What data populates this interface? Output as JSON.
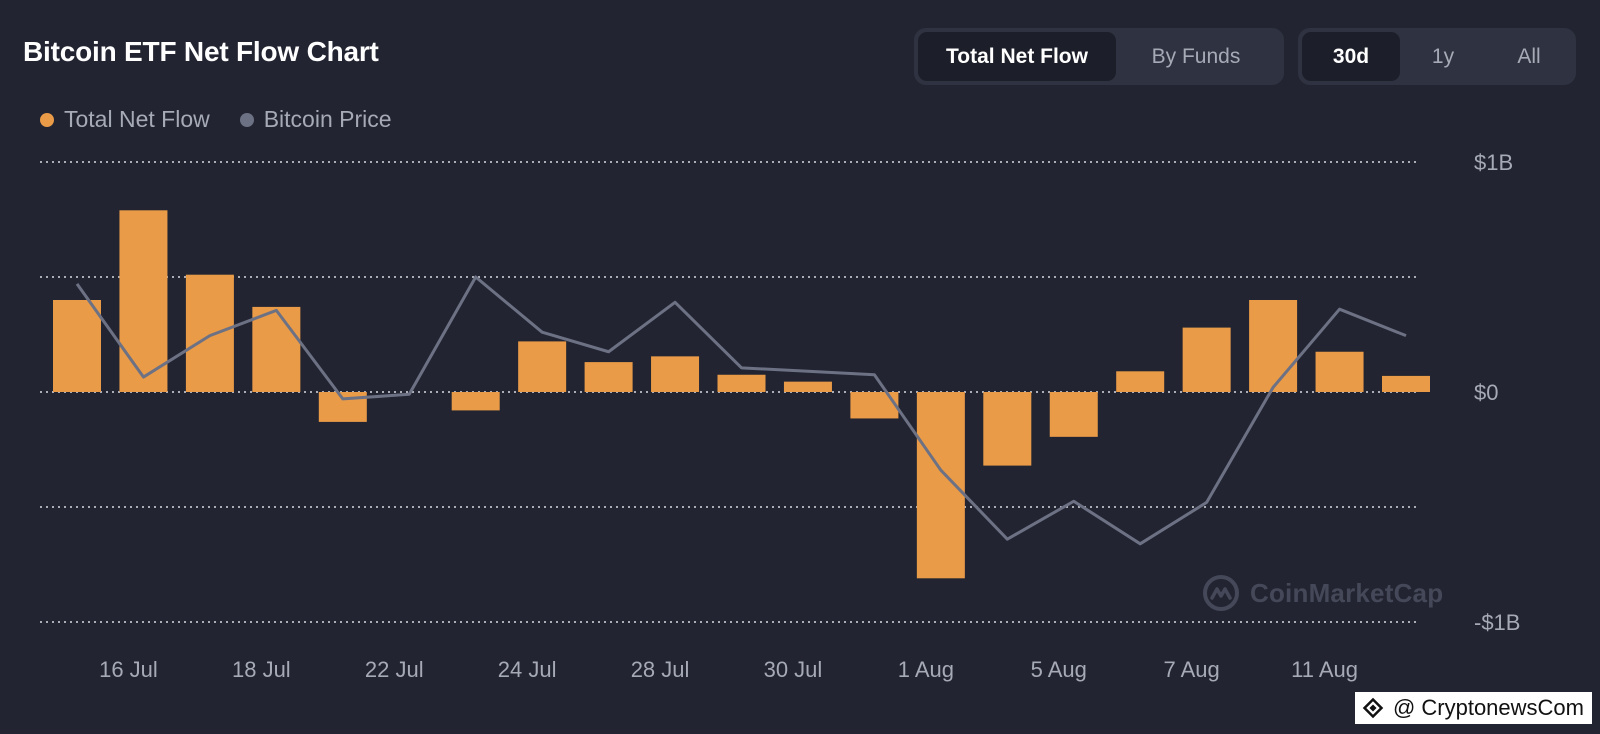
{
  "header": {
    "title": "Bitcoin ETF Net Flow Chart",
    "view_tabs": [
      {
        "label": "Total Net Flow",
        "active": true
      },
      {
        "label": "By Funds",
        "active": false
      }
    ],
    "range_tabs": [
      {
        "label": "30d",
        "active": true
      },
      {
        "label": "1y",
        "active": false
      },
      {
        "label": "All",
        "active": false
      }
    ]
  },
  "watermark": "CoinMarketCap",
  "credit": "@ CryptonewsCom",
  "chart_data": {
    "type": "bar",
    "title": "Bitcoin ETF Net Flow Chart",
    "legend_position": "top-left",
    "grid": true,
    "y_unit": "billions USD",
    "ylim": [
      -1,
      1
    ],
    "y_ticks": [
      {
        "value": 1,
        "label": "$1B"
      },
      {
        "value": 0.5,
        "label": ""
      },
      {
        "value": 0,
        "label": "$0"
      },
      {
        "value": -0.5,
        "label": ""
      },
      {
        "value": -1,
        "label": "-$1B"
      }
    ],
    "x_tick_labels": [
      "16 Jul",
      "18 Jul",
      "22 Jul",
      "24 Jul",
      "28 Jul",
      "30 Jul",
      "1 Aug",
      "5 Aug",
      "7 Aug",
      "11 Aug"
    ],
    "colors": {
      "Total Net Flow": "#e99b48",
      "Bitcoin Price": "#6d7184"
    },
    "series": [
      {
        "name": "Total Net Flow",
        "type": "bar",
        "values": [
          0.4,
          0.79,
          0.51,
          0.37,
          -0.13,
          0.0,
          -0.08,
          0.22,
          0.13,
          0.155,
          0.075,
          0.045,
          -0.115,
          -0.81,
          -0.32,
          -0.195,
          0.09,
          0.28,
          0.4,
          0.175,
          0.07
        ]
      },
      {
        "name": "Bitcoin Price",
        "type": "line",
        "values": [
          0.47,
          0.065,
          0.245,
          0.355,
          -0.03,
          -0.01,
          0.5,
          0.26,
          0.175,
          0.39,
          0.105,
          0.09,
          0.075,
          -0.34,
          -0.64,
          -0.475,
          -0.66,
          -0.48,
          0.02,
          0.36,
          0.245
        ]
      }
    ]
  }
}
